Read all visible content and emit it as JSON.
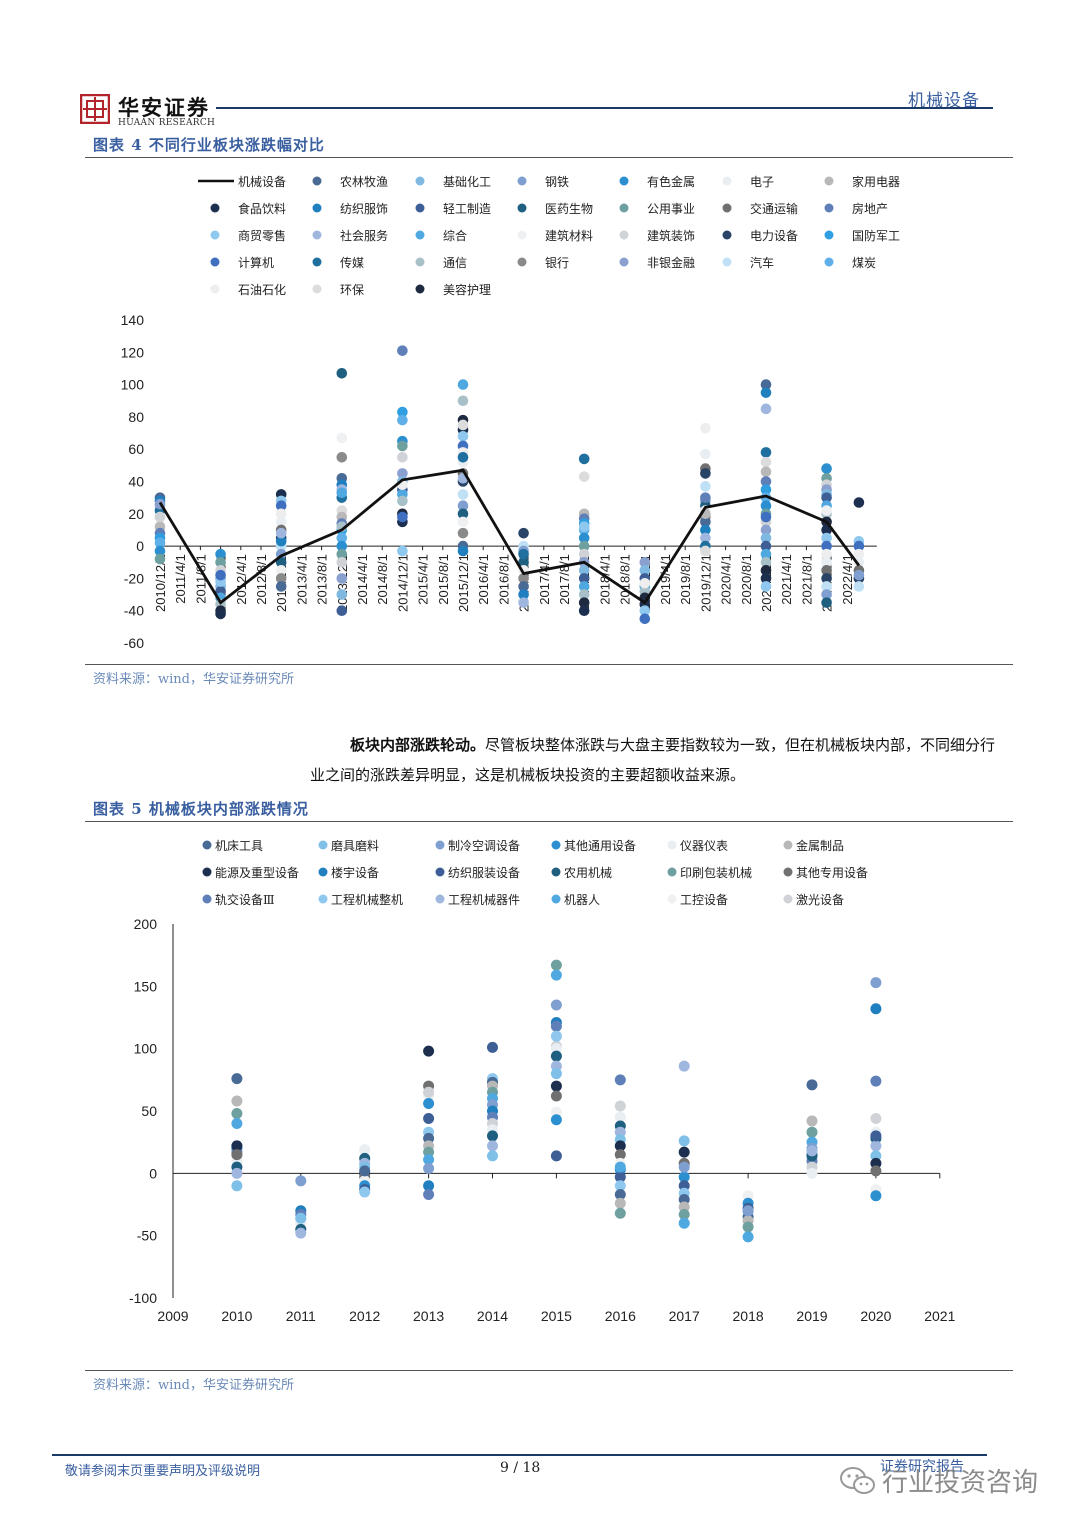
{
  "header": {
    "brand_cn": "华安证券",
    "brand_en": "HUAAN RESEARCH",
    "section": "机械设备",
    "colors": {
      "navy": "#1a3a6a",
      "brand_red": "#b0242a",
      "caption": "#3a5fa0"
    }
  },
  "figure4": {
    "caption": "图表 4 不同行业板块涨跌幅对比",
    "source": "资料来源：wind，华安证券研究所",
    "chart_data": {
      "type": "scatter",
      "line_series": "机械设备",
      "legend": [
        "机械设备",
        "农林牧渔",
        "基础化工",
        "钢铁",
        "有色金属",
        "电子",
        "家用电器",
        "食品饮料",
        "纺织服饰",
        "轻工制造",
        "医药生物",
        "公用事业",
        "交通运输",
        "房地产",
        "商贸零售",
        "社会服务",
        "综合",
        "建筑材料",
        "建筑装饰",
        "电力设备",
        "国防军工",
        "计算机",
        "传媒",
        "通信",
        "银行",
        "非银金融",
        "汽车",
        "煤炭",
        "石油石化",
        "环保",
        "美容护理"
      ],
      "legend_colors": [
        "#111111",
        "#4a6a96",
        "#7fb8e0",
        "#7f9fd0",
        "#2b8fd0",
        "#e8eef2",
        "#b8b8b8",
        "#1c2f4f",
        "#1f7fbf",
        "#3d5f96",
        "#1f5f7f",
        "#6fa0a0",
        "#707070",
        "#5f7fb8",
        "#8fc8ef",
        "#9fb7df",
        "#4fa8e0",
        "#eef0f2",
        "#cfd2d6",
        "#2a4468",
        "#2f9fdf",
        "#3f6fbf",
        "#1f6f9f",
        "#a8c0c8",
        "#8a8a8a",
        "#8aa0cf",
        "#c0e0f5",
        "#5fb0e8",
        "#eeeeee",
        "#dcdcdc",
        "#1e2a40"
      ],
      "x_labels": [
        "2010/12/1",
        "2011/4/1",
        "2011/8/1",
        "2011/12/1",
        "2012/4/1",
        "2012/8/1",
        "2012/12/1",
        "2013/4/1",
        "2013/8/1",
        "2013/12/1",
        "2014/4/1",
        "2014/8/1",
        "2014/12/1",
        "2015/4/1",
        "2015/8/1",
        "2015/12/1",
        "2016/4/1",
        "2016/8/1",
        "2016/12/1",
        "2017/4/1",
        "2017/8/1",
        "2017/12/1",
        "2018/4/1",
        "2018/8/1",
        "2018/12/1",
        "2019/4/1",
        "2019/8/1",
        "2019/12/1",
        "2020/4/1",
        "2020/8/1",
        "2020/12/1",
        "2021/4/1",
        "2021/8/1",
        "2021/12/1",
        "2022/4/1"
      ],
      "ylim": [
        -60,
        140
      ],
      "yticks": [
        "140",
        "120",
        "100",
        "80",
        "60",
        "40",
        "20",
        "0",
        "-20",
        "-40",
        "-60"
      ],
      "mech_line": [
        {
          "i": 0,
          "v": 27
        },
        {
          "i": 3,
          "v": -35
        },
        {
          "i": 6,
          "v": -6
        },
        {
          "i": 9,
          "v": 10
        },
        {
          "i": 12,
          "v": 41
        },
        {
          "i": 15,
          "v": 47
        },
        {
          "i": 18,
          "v": -17
        },
        {
          "i": 21,
          "v": -10
        },
        {
          "i": 24,
          "v": -35
        },
        {
          "i": 27,
          "v": 24
        },
        {
          "i": 30,
          "v": 31
        },
        {
          "i": 33,
          "v": 15
        },
        {
          "i": 34.6,
          "v": -12
        }
      ],
      "points": [
        {
          "i": 0,
          "v": [
            30,
            28,
            25,
            22,
            18,
            12,
            8,
            5,
            2,
            -3,
            -8,
            18,
            26
          ]
        },
        {
          "i": 3,
          "v": [
            -5,
            -10,
            -15,
            -20,
            -25,
            -28,
            -32,
            -36,
            -40,
            -42,
            -22,
            -18
          ]
        },
        {
          "i": 6,
          "v": [
            32,
            28,
            25,
            20,
            15,
            10,
            5,
            0,
            -5,
            -10,
            -15,
            -20,
            -25,
            3,
            8
          ]
        },
        {
          "i": 9,
          "v": [
            107,
            67,
            55,
            42,
            38,
            35,
            30,
            22,
            18,
            14,
            10,
            5,
            0,
            -5,
            -10,
            -20,
            -30,
            -40,
            33,
            12
          ]
        },
        {
          "i": 12,
          "v": [
            121,
            83,
            78,
            65,
            62,
            55,
            45,
            40,
            35,
            32,
            28,
            20,
            15,
            -3,
            18,
            38
          ]
        },
        {
          "i": 15,
          "v": [
            100,
            90,
            78,
            72,
            68,
            62,
            58,
            52,
            45,
            40,
            32,
            25,
            20,
            15,
            8,
            0,
            -3,
            42,
            55,
            75
          ]
        },
        {
          "i": 18,
          "v": [
            8,
            0,
            -3,
            -10,
            -15,
            -20,
            -25,
            -30,
            -35,
            -5
          ]
        },
        {
          "i": 21,
          "v": [
            54,
            43,
            20,
            17,
            14,
            10,
            5,
            0,
            -5,
            -10,
            -15,
            -20,
            -25,
            -30,
            -35,
            -40,
            12
          ]
        },
        {
          "i": 24,
          "v": [
            -10,
            -15,
            -20,
            -25,
            -28,
            -32,
            -36,
            -40,
            -45,
            -23
          ]
        },
        {
          "i": 27,
          "v": [
            73,
            57,
            48,
            45,
            37,
            28,
            25,
            22,
            18,
            15,
            10,
            5,
            0,
            -3,
            20,
            30
          ]
        },
        {
          "i": 30,
          "v": [
            100,
            95,
            85,
            58,
            52,
            46,
            40,
            35,
            30,
            25,
            20,
            15,
            10,
            5,
            0,
            -5,
            -10,
            -15,
            -20,
            -25,
            18
          ]
        },
        {
          "i": 33,
          "v": [
            48,
            42,
            38,
            35,
            32,
            30,
            25,
            20,
            15,
            10,
            5,
            0,
            -5,
            -10,
            -15,
            -20,
            -25,
            -30,
            -35,
            22
          ]
        },
        {
          "i": 34.6,
          "v": [
            27,
            3,
            0,
            -5,
            -10,
            -15,
            -20,
            -25,
            -18
          ]
        }
      ]
    }
  },
  "paragraph": {
    "bold_lead": "板块内部涨跌轮动。",
    "text": "尽管板块整体涨跌与大盘主要指数较为一致，但在机械板块内部，不同细分行业之间的涨跌差异明显，这是机械板块投资的主要超额收益来源。"
  },
  "figure5": {
    "caption": "图表 5 机械板块内部涨跌情况",
    "source": "资料来源：wind，华安证券研究所",
    "chart_data": {
      "type": "scatter",
      "legend": [
        "机床工具",
        "磨具磨料",
        "制冷空调设备",
        "其他通用设备",
        "仪器仪表",
        "金属制品",
        "能源及重型设备",
        "楼宇设备",
        "纺织服装设备",
        "农用机械",
        "印刷包装机械",
        "其他专用设备",
        "轨交设备Ⅲ",
        "工程机械整机",
        "工程机械器件",
        "机器人",
        "工控设备",
        "激光设备"
      ],
      "legend_colors": [
        "#4a6a96",
        "#7fc0e8",
        "#7f9fd0",
        "#2b8fd0",
        "#e8eef2",
        "#b8b8b8",
        "#1c2f4f",
        "#1f7fbf",
        "#3d5f96",
        "#1f5f7f",
        "#6fa0a0",
        "#707070",
        "#5f7fb8",
        "#8fc8ef",
        "#9fb7df",
        "#4fa8e0",
        "#eef0f2",
        "#cfd2d6"
      ],
      "x_labels": [
        "2009",
        "2010",
        "2011",
        "2012",
        "2013",
        "2014",
        "2015",
        "2016",
        "2017",
        "2018",
        "2019",
        "2020",
        "2021"
      ],
      "ylim": [
        -100,
        200
      ],
      "yticks": [
        "200",
        "150",
        "100",
        "50",
        "0",
        "-50",
        "-100"
      ],
      "points": [
        {
          "year": 2010,
          "v": [
            76,
            58,
            48,
            40,
            22,
            20,
            17,
            14,
            10,
            5,
            0,
            -10,
            22,
            15
          ]
        },
        {
          "year": 2011,
          "v": [
            -6,
            -30,
            -33,
            -37,
            -40,
            -45,
            -48,
            -36
          ]
        },
        {
          "year": 2012,
          "v": [
            19,
            12,
            8,
            5,
            0,
            -3,
            -6,
            -10,
            -13,
            -15,
            2
          ]
        },
        {
          "year": 2013,
          "v": [
            98,
            70,
            62,
            56,
            44,
            33,
            28,
            22,
            17,
            11,
            4,
            -10,
            -17,
            65
          ]
        },
        {
          "year": 2014,
          "v": [
            101,
            76,
            73,
            70,
            65,
            60,
            55,
            50,
            45,
            40,
            35,
            30,
            22,
            14
          ]
        },
        {
          "year": 2015,
          "v": [
            167,
            159,
            135,
            121,
            118,
            102,
            100,
            94,
            86,
            80,
            70,
            62,
            49,
            43,
            14,
            110
          ]
        },
        {
          "year": 2016,
          "v": [
            75,
            54,
            45,
            38,
            33,
            27,
            22,
            15,
            8,
            3,
            -3,
            -10,
            -17,
            -24,
            -32,
            5
          ]
        },
        {
          "year": 2017,
          "v": [
            86,
            26,
            17,
            8,
            3,
            -3,
            -10,
            -16,
            -21,
            -27,
            -33,
            -40,
            5
          ]
        },
        {
          "year": 2018,
          "v": [
            -18,
            -24,
            -28,
            -31,
            -35,
            -38,
            -43,
            -51,
            -30
          ]
        },
        {
          "year": 2019,
          "v": [
            71,
            42,
            33,
            25,
            20,
            15,
            10,
            5,
            0,
            14,
            18
          ]
        },
        {
          "year": 2020,
          "v": [
            153,
            132,
            74,
            44,
            33,
            28,
            22,
            14,
            8,
            2,
            -13,
            -18,
            30
          ]
        }
      ]
    }
  },
  "footer": {
    "disclaimer": "敬请参阅末页重要声明及评级说明",
    "page": "9 / 18",
    "report_type": "证券研究报告",
    "watermark": "行业投资咨询"
  }
}
